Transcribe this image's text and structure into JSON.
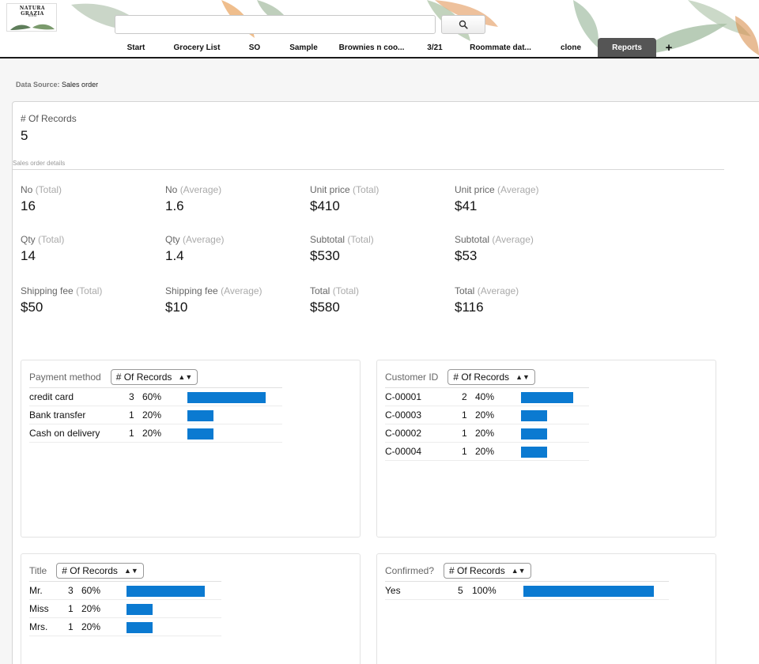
{
  "header": {
    "logo": {
      "top": "NATURA GRAZIA",
      "sub": "floral"
    },
    "search": {
      "value": "",
      "placeholder": "",
      "icon": "search-icon"
    },
    "tabs": [
      {
        "label": "Start"
      },
      {
        "label": "Grocery List"
      },
      {
        "label": "SO"
      },
      {
        "label": "Sample"
      },
      {
        "label": "Brownies n coo..."
      },
      {
        "label": "3/21"
      },
      {
        "label": "Roommate dat..."
      },
      {
        "label": "clone"
      },
      {
        "label": "Reports",
        "active": true
      }
    ],
    "add_tab": "+"
  },
  "data_source": {
    "label": "Data Source:",
    "value": "Sales order"
  },
  "records": {
    "label": "# Of Records",
    "value": "5"
  },
  "section": {
    "label": "Sales order details"
  },
  "metrics": [
    {
      "name": "No",
      "agg": "(Total)",
      "value": "16"
    },
    {
      "name": "No",
      "agg": "(Average)",
      "value": "1.6"
    },
    {
      "name": "Unit price",
      "agg": "(Total)",
      "value": "$410"
    },
    {
      "name": "Unit price",
      "agg": "(Average)",
      "value": "$41"
    },
    {
      "name": "Qty",
      "agg": "(Total)",
      "value": "14"
    },
    {
      "name": "Qty",
      "agg": "(Average)",
      "value": "1.4"
    },
    {
      "name": "Subtotal",
      "agg": "(Total)",
      "value": "$530"
    },
    {
      "name": "Subtotal",
      "agg": "(Average)",
      "value": "$53"
    },
    {
      "name": "Shipping fee",
      "agg": "(Total)",
      "value": "$50"
    },
    {
      "name": "Shipping fee",
      "agg": "(Average)",
      "value": "$10"
    },
    {
      "name": "Total",
      "agg": "(Total)",
      "value": "$580"
    },
    {
      "name": "Total",
      "agg": "(Average)",
      "value": "$116"
    }
  ],
  "widgets": [
    {
      "field": "Payment method",
      "measure": "# Of Records",
      "rows": [
        {
          "label": "credit card",
          "count": "3",
          "percent": "60%",
          "share": 0.6
        },
        {
          "label": "Bank transfer",
          "count": "1",
          "percent": "20%",
          "share": 0.2
        },
        {
          "label": "Cash on delivery",
          "count": "1",
          "percent": "20%",
          "share": 0.2
        }
      ]
    },
    {
      "field": "Customer ID",
      "measure": "# Of Records",
      "rows": [
        {
          "label": "C-00001",
          "count": "2",
          "percent": "40%",
          "share": 0.4
        },
        {
          "label": "C-00003",
          "count": "1",
          "percent": "20%",
          "share": 0.2
        },
        {
          "label": "C-00002",
          "count": "1",
          "percent": "20%",
          "share": 0.2
        },
        {
          "label": "C-00004",
          "count": "1",
          "percent": "20%",
          "share": 0.2
        }
      ]
    },
    {
      "field": "Title",
      "measure": "# Of Records",
      "rows": [
        {
          "label": "Mr.",
          "count": "3",
          "percent": "60%",
          "share": 0.6
        },
        {
          "label": "Miss",
          "count": "1",
          "percent": "20%",
          "share": 0.2
        },
        {
          "label": "Mrs.",
          "count": "1",
          "percent": "20%",
          "share": 0.2
        }
      ]
    },
    {
      "field": "Confirmed?",
      "measure": "# Of Records",
      "rows": [
        {
          "label": "Yes",
          "count": "5",
          "percent": "100%",
          "share": 1.0
        }
      ]
    }
  ],
  "colors": {
    "bar": "#0b7ad1",
    "active_tab": "#555555",
    "header_rule": "#1a1a1a"
  }
}
